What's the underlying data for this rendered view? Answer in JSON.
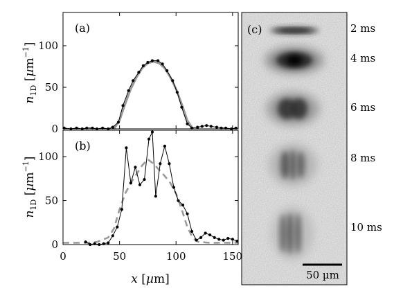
{
  "figure": {
    "panel_c": {
      "tag": "(c)",
      "time_labels": [
        "2 ms",
        "4 ms",
        "6 ms",
        "8 ms",
        "10 ms"
      ],
      "scale_bar_label": "50 µm"
    }
  },
  "chart_data": [
    {
      "type": "line",
      "panel": "(a)",
      "ylabel": "n1D [µm⁻¹]",
      "xlabel": "",
      "xlim": [
        0,
        155
      ],
      "ylim": [
        0,
        140
      ],
      "yticks": [
        0,
        50,
        100
      ],
      "xticks": [
        0,
        50,
        100,
        150
      ],
      "show_x_tick_labels": false,
      "series": [
        {
          "style": "solid-black-dots",
          "x": [
            1,
            7,
            12,
            17,
            21,
            26,
            30,
            35,
            40,
            44,
            49,
            53,
            58,
            62,
            67,
            71,
            75,
            79,
            84,
            88,
            92,
            97,
            101,
            105,
            110,
            114,
            119,
            123,
            127,
            131,
            136,
            140,
            144,
            149,
            153
          ],
          "y": [
            1,
            0,
            1,
            0,
            1,
            1,
            0,
            1,
            0,
            2,
            8,
            28,
            46,
            58,
            68,
            76,
            80,
            82,
            82,
            78,
            70,
            58,
            44,
            26,
            6,
            1,
            2,
            3,
            4,
            3,
            2,
            1,
            1,
            0,
            1
          ]
        },
        {
          "style": "gray-thick",
          "x": [
            45,
            50,
            55,
            60,
            65,
            70,
            75,
            80,
            85,
            90,
            95,
            100,
            105,
            110,
            115
          ],
          "y": [
            0,
            10,
            30,
            48,
            62,
            73,
            79,
            81,
            79,
            73,
            62,
            48,
            30,
            10,
            0
          ]
        }
      ]
    },
    {
      "type": "line",
      "panel": "(b)",
      "ylabel": "n1D [µm⁻¹]",
      "xlabel": "x [µm]",
      "xlim": [
        0,
        155
      ],
      "ylim": [
        0,
        130
      ],
      "yticks": [
        0,
        50,
        100
      ],
      "xticks": [
        0,
        50,
        100,
        150
      ],
      "show_x_tick_labels": true,
      "series": [
        {
          "style": "solid-black-dots",
          "x": [
            20,
            24,
            28,
            32,
            36,
            40,
            44,
            48,
            52,
            56,
            60,
            64,
            68,
            72,
            76,
            79,
            82,
            86,
            90,
            94,
            98,
            102,
            106,
            110,
            114,
            118,
            122,
            126,
            130,
            134,
            138,
            142,
            146,
            150,
            154
          ],
          "y": [
            3,
            0,
            1,
            0,
            1,
            2,
            10,
            20,
            40,
            110,
            70,
            88,
            68,
            74,
            120,
            128,
            55,
            92,
            112,
            92,
            65,
            50,
            45,
            35,
            15,
            5,
            8,
            13,
            11,
            8,
            6,
            5,
            7,
            6,
            4
          ]
        },
        {
          "style": "gray-dashed",
          "x": [
            0,
            10,
            20,
            30,
            40,
            45,
            50,
            55,
            60,
            65,
            70,
            75,
            80,
            85,
            90,
            95,
            100,
            105,
            110,
            115,
            120,
            130,
            140,
            150,
            155
          ],
          "y": [
            2,
            2,
            2,
            3,
            8,
            18,
            40,
            58,
            70,
            80,
            90,
            97,
            92,
            85,
            78,
            70,
            58,
            40,
            20,
            7,
            3,
            2,
            2,
            2,
            2
          ]
        }
      ]
    }
  ]
}
